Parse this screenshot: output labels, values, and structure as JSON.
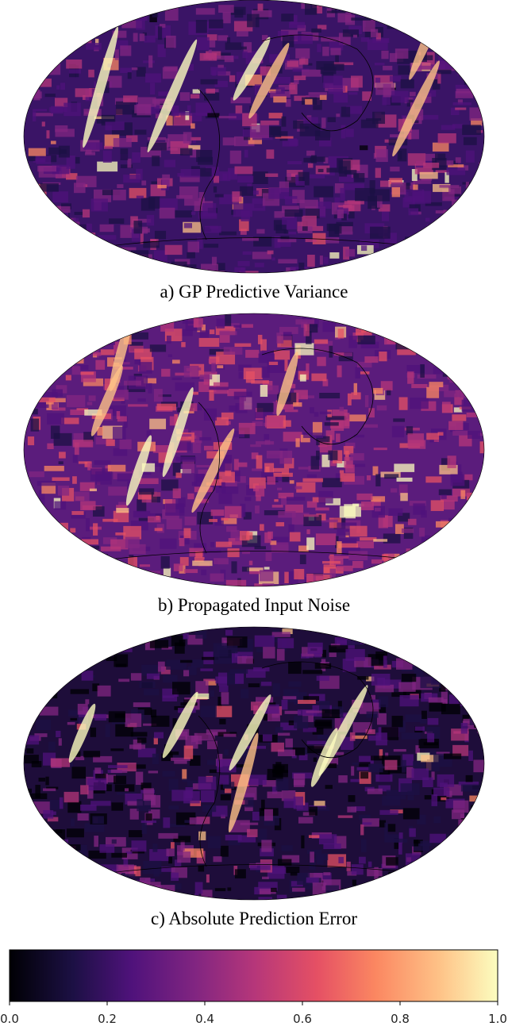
{
  "panels": [
    {
      "caption": "a) GP Predictive Variance"
    },
    {
      "caption": "b) Propagated Input Noise"
    },
    {
      "caption": "c) Absolute Prediction Error"
    }
  ],
  "colorbar": {
    "lim": [
      0,
      1
    ],
    "ticks": [
      {
        "value": 0,
        "label": "0.0"
      },
      0.2,
      0.4,
      0.6,
      0.8,
      {
        "value": 1,
        "label": "1.0"
      }
    ]
  }
}
